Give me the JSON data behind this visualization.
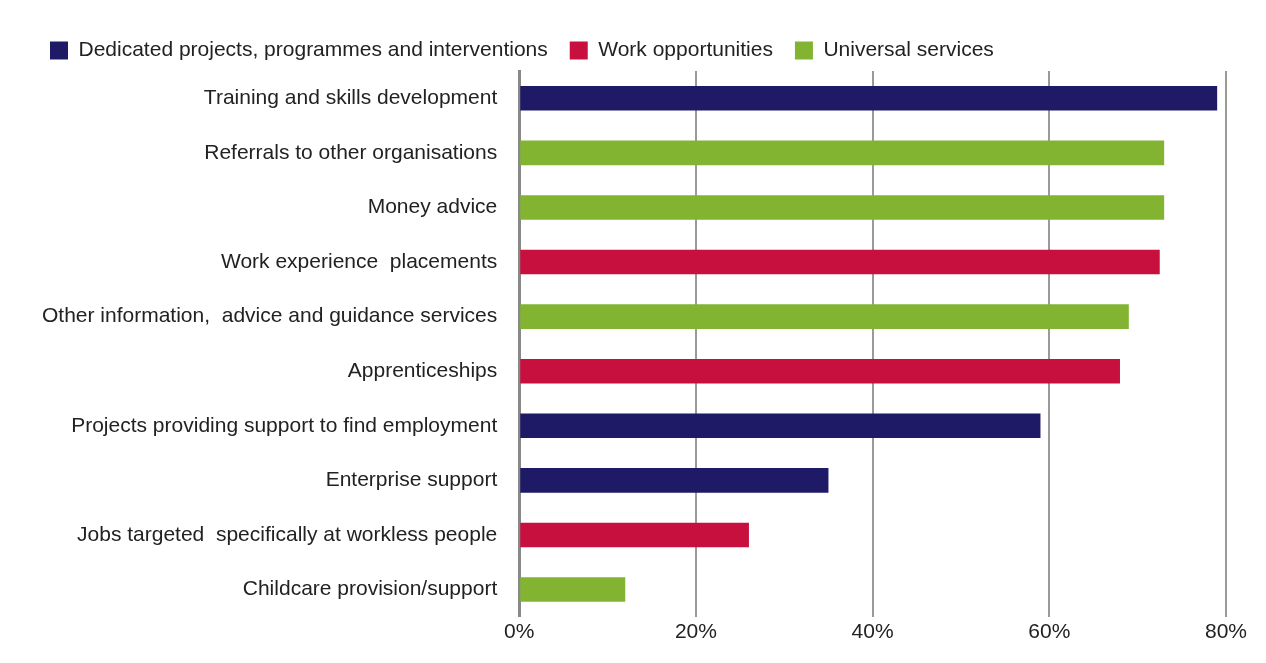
{
  "chart_data": {
    "type": "bar",
    "orientation": "horizontal",
    "categories": [
      "Training and skills development",
      "Referrals to other organisations",
      "Money advice",
      "Work experience  placements",
      "Other information,  advice and guidance services",
      "Apprenticeships",
      "Projects providing support to find employment",
      "Enterprise support",
      "Jobs targeted  specifically at workless people",
      "Childcare provision/support"
    ],
    "series": [
      {
        "name": "Dedicated projects, programmes and interventions",
        "color": "#1f1a66",
        "values": [
          79,
          null,
          null,
          null,
          null,
          null,
          59,
          35,
          null,
          null
        ]
      },
      {
        "name": "Work opportunities",
        "color": "#c8103e",
        "values": [
          null,
          null,
          null,
          72.5,
          null,
          68,
          null,
          null,
          26,
          null
        ]
      },
      {
        "name": "Universal services",
        "color": "#82b432",
        "values": [
          null,
          73,
          73,
          null,
          69,
          null,
          null,
          null,
          null,
          12
        ]
      }
    ],
    "xlim": [
      0,
      80
    ],
    "xticks": [
      {
        "value": 0,
        "label": "0%"
      },
      {
        "value": 20,
        "label": "20%"
      },
      {
        "value": 40,
        "label": "40%"
      },
      {
        "value": 60,
        "label": "60%"
      },
      {
        "value": 80,
        "label": "80%"
      }
    ],
    "grid": "x",
    "legend": "top left"
  }
}
